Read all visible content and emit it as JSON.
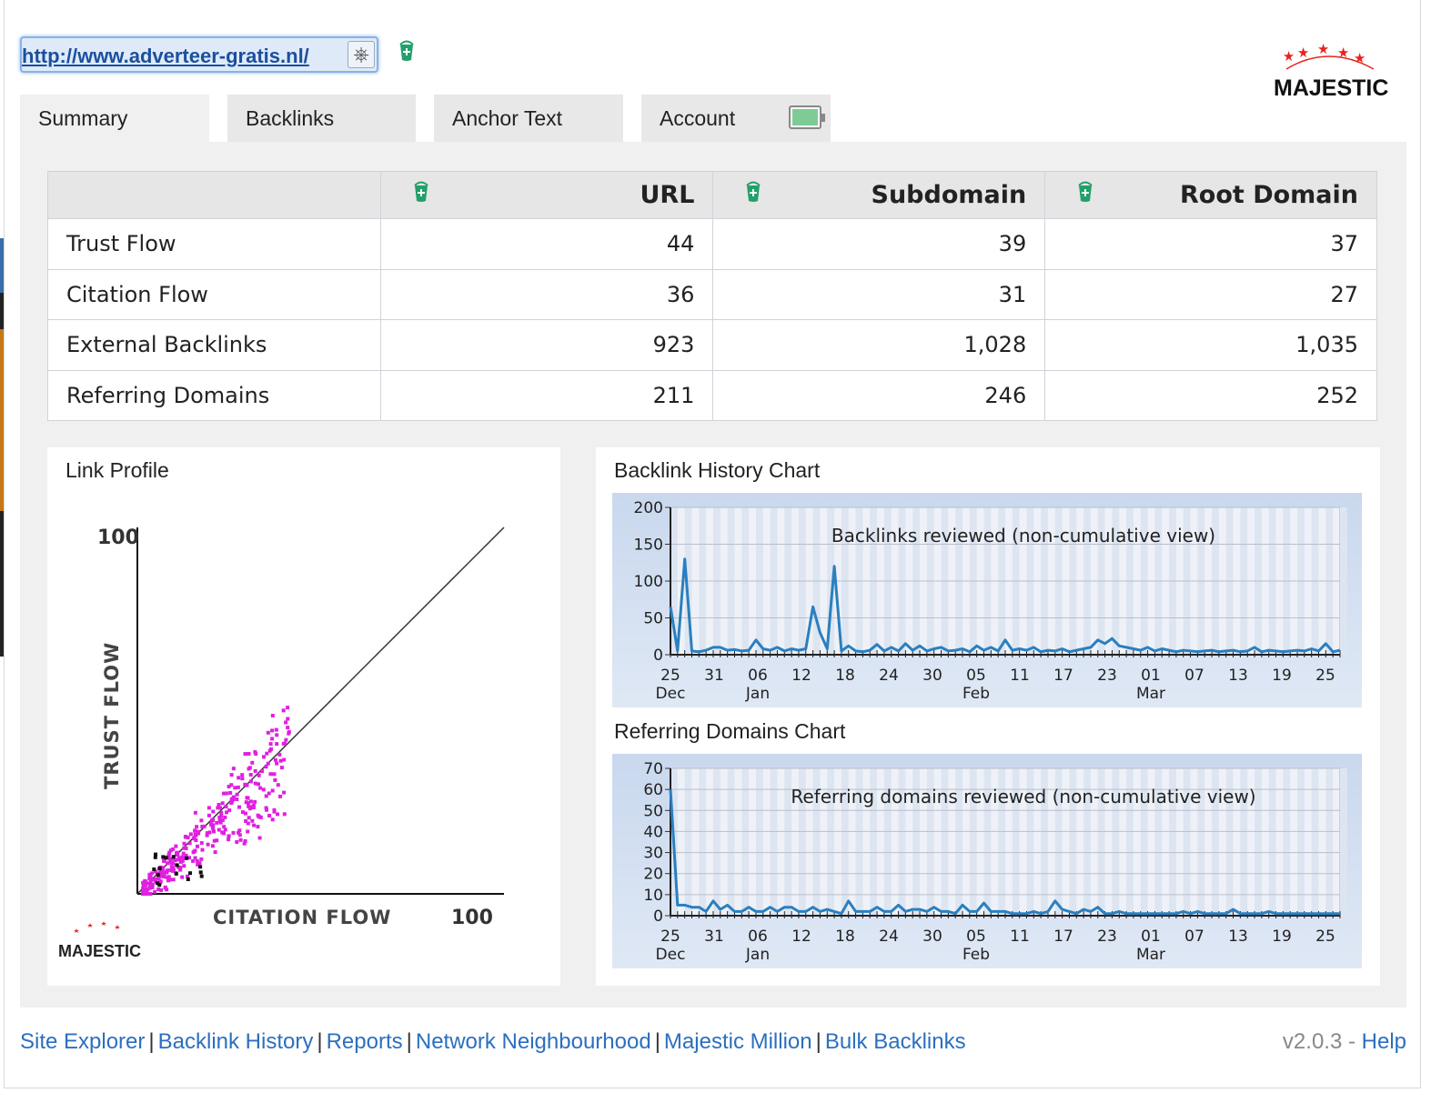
{
  "url_bar": {
    "url": "http://www.adverteer-gratis.nl/"
  },
  "logo": {
    "text": "MAJESTIC"
  },
  "tabs": [
    {
      "label": "Summary",
      "active": true
    },
    {
      "label": "Backlinks",
      "active": false
    },
    {
      "label": "Anchor Text",
      "active": false
    },
    {
      "label": "Account",
      "active": false
    }
  ],
  "stats_table": {
    "columns": [
      "URL",
      "Subdomain",
      "Root Domain"
    ],
    "rows": [
      {
        "label": "Trust Flow",
        "values": [
          "44",
          "39",
          "37"
        ]
      },
      {
        "label": "Citation Flow",
        "values": [
          "36",
          "31",
          "27"
        ]
      },
      {
        "label": "External Backlinks",
        "values": [
          "923",
          "1,028",
          "1,035"
        ]
      },
      {
        "label": "Referring Domains",
        "values": [
          "211",
          "246",
          "252"
        ]
      }
    ]
  },
  "link_profile": {
    "title": "Link Profile",
    "y_label": "TRUST FLOW",
    "x_label": "CITATION FLOW",
    "y_max_label": "100",
    "x_max_label": "100",
    "logo_text": "MAJESTIC",
    "point_color": "#e020e0"
  },
  "backlink_history": {
    "title": "Backlink History Chart",
    "inner_title": "Backlinks reviewed (non-cumulative view)"
  },
  "referring_domains": {
    "title": "Referring Domains Chart",
    "inner_title": "Referring domains reviewed (non-cumulative view)"
  },
  "footer": {
    "links": [
      "Site Explorer",
      "Backlink History",
      "Reports",
      "Network Neighbourhood",
      "Majestic Million",
      "Bulk Backlinks"
    ],
    "version": "v2.0.3",
    "dash": " - ",
    "help": "Help"
  },
  "colors": {
    "accent": "#2c6fbf",
    "line": "#2a7fc0",
    "bucket": "#22a06b"
  },
  "chart_data": [
    {
      "type": "scatter",
      "title": "",
      "xlabel": "CITATION FLOW",
      "ylabel": "TRUST FLOW",
      "xlim": [
        0,
        100
      ],
      "ylim": [
        0,
        100
      ],
      "note": "diagonal reference line from (0,0) to (100,100)"
    },
    {
      "type": "line",
      "title": "Backlinks reviewed (non-cumulative view)",
      "ylim": [
        0,
        200
      ],
      "yticks": [
        0,
        50,
        100,
        150,
        200
      ],
      "x_tick_labels": [
        "25",
        "31",
        "06",
        "12",
        "18",
        "24",
        "30",
        "05",
        "11",
        "17",
        "23",
        "01",
        "07",
        "13",
        "19",
        "25"
      ],
      "x_month_labels": [
        {
          "at": "25",
          "label": "Dec"
        },
        {
          "at": "06",
          "label": "Jan"
        },
        {
          "at": "05",
          "label": "Feb"
        },
        {
          "at": "01",
          "label": "Mar"
        }
      ],
      "series": [
        {
          "values": [
            65,
            5,
            130,
            5,
            4,
            6,
            10,
            10,
            6,
            7,
            5,
            6,
            20,
            8,
            6,
            10,
            5,
            8,
            6,
            8,
            65,
            30,
            8,
            120,
            5,
            12,
            5,
            4,
            6,
            14,
            5,
            10,
            5,
            15,
            6,
            12,
            5,
            8,
            10,
            5,
            6,
            8,
            4,
            12,
            6,
            10,
            5,
            20,
            6,
            8,
            6,
            10,
            4,
            6,
            5,
            8,
            4,
            6,
            8,
            10,
            20,
            15,
            22,
            12,
            10,
            8,
            6,
            10,
            5,
            8,
            6,
            4,
            6,
            5,
            4,
            5,
            6,
            4,
            5,
            6,
            4,
            5,
            10,
            4,
            6,
            5,
            4,
            5,
            6,
            5,
            8,
            5,
            15,
            4,
            6
          ]
        }
      ]
    },
    {
      "type": "line",
      "title": "Referring domains reviewed (non-cumulative view)",
      "ylim": [
        0,
        70
      ],
      "yticks": [
        0,
        10,
        20,
        30,
        40,
        50,
        60,
        70
      ],
      "x_tick_labels": [
        "25",
        "31",
        "06",
        "12",
        "18",
        "24",
        "30",
        "05",
        "11",
        "17",
        "23",
        "01",
        "07",
        "13",
        "19",
        "25"
      ],
      "x_month_labels": [
        {
          "at": "25",
          "label": "Dec"
        },
        {
          "at": "06",
          "label": "Jan"
        },
        {
          "at": "05",
          "label": "Feb"
        },
        {
          "at": "01",
          "label": "Mar"
        }
      ],
      "series": [
        {
          "values": [
            60,
            5,
            5,
            4,
            4,
            2,
            7,
            3,
            5,
            2,
            2,
            4,
            2,
            2,
            4,
            2,
            4,
            4,
            2,
            2,
            4,
            2,
            3,
            2,
            1,
            7,
            2,
            2,
            2,
            4,
            2,
            2,
            5,
            2,
            3,
            3,
            2,
            4,
            2,
            2,
            1,
            5,
            2,
            2,
            6,
            2,
            2,
            2,
            1,
            1,
            1,
            2,
            1,
            2,
            7,
            3,
            2,
            1,
            3,
            2,
            4,
            1,
            1,
            2,
            1,
            1,
            1,
            1,
            1,
            1,
            1,
            1,
            2,
            1,
            2,
            1,
            1,
            1,
            1,
            3,
            1,
            1,
            1,
            1,
            2,
            1,
            1,
            1,
            1,
            1,
            1,
            1,
            1,
            1,
            1
          ]
        }
      ]
    }
  ]
}
